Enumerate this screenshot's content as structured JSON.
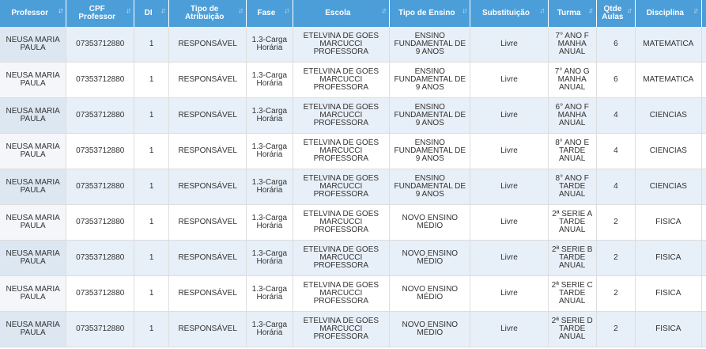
{
  "table": {
    "columns": [
      {
        "label": "Professor",
        "sort_icon": "sort-desc-icon"
      },
      {
        "label": "CPF Professor",
        "sort_icon": "sort-icon"
      },
      {
        "label": "DI",
        "sort_icon": "sort-icon"
      },
      {
        "label": "Tipo de Atribuição",
        "sort_icon": "sort-icon"
      },
      {
        "label": "Fase",
        "sort_icon": "sort-icon"
      },
      {
        "label": "Escola",
        "sort_icon": "sort-icon"
      },
      {
        "label": "Tipo de Ensino",
        "sort_icon": "sort-icon"
      },
      {
        "label": "Substituição",
        "sort_icon": "sort-icon"
      },
      {
        "label": "Turma",
        "sort_icon": "sort-icon"
      },
      {
        "label": "Qtde Aulas",
        "sort_icon": "sort-icon"
      },
      {
        "label": "Disciplina",
        "sort_icon": "sort-icon"
      }
    ],
    "rows": [
      [
        "NEUSA MARIA PAULA",
        "07353712880",
        "1",
        "RESPONSÁVEL",
        "1.3-Carga Horária",
        "ETELVINA DE GOES MARCUCCI PROFESSORA",
        "ENSINO FUNDAMENTAL DE 9 ANOS",
        "Livre",
        "7° ANO F MANHA ANUAL",
        "6",
        "MATEMATICA"
      ],
      [
        "NEUSA MARIA PAULA",
        "07353712880",
        "1",
        "RESPONSÁVEL",
        "1.3-Carga Horária",
        "ETELVINA DE GOES MARCUCCI PROFESSORA",
        "ENSINO FUNDAMENTAL DE 9 ANOS",
        "Livre",
        "7° ANO G MANHA ANUAL",
        "6",
        "MATEMATICA"
      ],
      [
        "NEUSA MARIA PAULA",
        "07353712880",
        "1",
        "RESPONSÁVEL",
        "1.3-Carga Horária",
        "ETELVINA DE GOES MARCUCCI PROFESSORA",
        "ENSINO FUNDAMENTAL DE 9 ANOS",
        "Livre",
        "6° ANO F MANHA ANUAL",
        "4",
        "CIENCIAS"
      ],
      [
        "NEUSA MARIA PAULA",
        "07353712880",
        "1",
        "RESPONSÁVEL",
        "1.3-Carga Horária",
        "ETELVINA DE GOES MARCUCCI PROFESSORA",
        "ENSINO FUNDAMENTAL DE 9 ANOS",
        "Livre",
        "8° ANO E TARDE ANUAL",
        "4",
        "CIENCIAS"
      ],
      [
        "NEUSA MARIA PAULA",
        "07353712880",
        "1",
        "RESPONSÁVEL",
        "1.3-Carga Horária",
        "ETELVINA DE GOES MARCUCCI PROFESSORA",
        "ENSINO FUNDAMENTAL DE 9 ANOS",
        "Livre",
        "8° ANO F TARDE ANUAL",
        "4",
        "CIENCIAS"
      ],
      [
        "NEUSA MARIA PAULA",
        "07353712880",
        "1",
        "RESPONSÁVEL",
        "1.3-Carga Horária",
        "ETELVINA DE GOES MARCUCCI PROFESSORA",
        "NOVO ENSINO MÉDIO",
        "Livre",
        "2ª SERIE A TARDE ANUAL",
        "2",
        "FISICA"
      ],
      [
        "NEUSA MARIA PAULA",
        "07353712880",
        "1",
        "RESPONSÁVEL",
        "1.3-Carga Horária",
        "ETELVINA DE GOES MARCUCCI PROFESSORA",
        "NOVO ENSINO MÉDIO",
        "Livre",
        "2ª SERIE B TARDE ANUAL",
        "2",
        "FISICA"
      ],
      [
        "NEUSA MARIA PAULA",
        "07353712880",
        "1",
        "RESPONSÁVEL",
        "1.3-Carga Horária",
        "ETELVINA DE GOES MARCUCCI PROFESSORA",
        "NOVO ENSINO MÉDIO",
        "Livre",
        "2ª SERIE C TARDE ANUAL",
        "2",
        "FISICA"
      ],
      [
        "NEUSA MARIA PAULA",
        "07353712880",
        "1",
        "RESPONSÁVEL",
        "1.3-Carga Horária",
        "ETELVINA DE GOES MARCUCCI PROFESSORA",
        "NOVO ENSINO MÉDIO",
        "Livre",
        "2ª SERIE D TARDE ANUAL",
        "2",
        "FISICA"
      ]
    ]
  }
}
